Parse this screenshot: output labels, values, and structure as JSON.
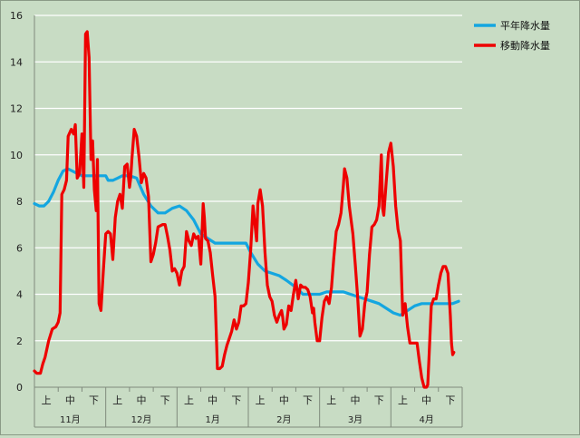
{
  "colors": {
    "background": "#c8dcc4",
    "gridline": "#ffffff",
    "normal_series": "#14a6e0",
    "moving_series": "#ee0000"
  },
  "chart_data": {
    "type": "line",
    "title": "",
    "xlabel": "",
    "ylabel": "",
    "ylim": [
      0,
      16
    ],
    "yticks": [
      0,
      2,
      4,
      6,
      8,
      10,
      12,
      14,
      16
    ],
    "grid": true,
    "legend_position": "top-right",
    "months": [
      "11月",
      "12月",
      "1月",
      "2月",
      "3月",
      "4月"
    ],
    "periods": [
      "上",
      "中",
      "下"
    ],
    "x_range": [
      0,
      18
    ],
    "series": [
      {
        "name": "平年降水量",
        "color": "#14a6e0",
        "points": [
          [
            0,
            7.9
          ],
          [
            0.2,
            7.8
          ],
          [
            0.4,
            7.8
          ],
          [
            0.6,
            8.0
          ],
          [
            0.8,
            8.4
          ],
          [
            1.0,
            8.9
          ],
          [
            1.2,
            9.3
          ],
          [
            1.4,
            9.4
          ],
          [
            1.6,
            9.3
          ],
          [
            1.8,
            9.2
          ],
          [
            2.0,
            9.1
          ],
          [
            2.5,
            9.1
          ],
          [
            3.0,
            9.1
          ],
          [
            3.1,
            8.9
          ],
          [
            3.3,
            8.9
          ],
          [
            3.5,
            9.0
          ],
          [
            3.7,
            9.1
          ],
          [
            4.0,
            9.1
          ],
          [
            4.3,
            9.0
          ],
          [
            4.6,
            8.3
          ],
          [
            4.9,
            7.8
          ],
          [
            5.2,
            7.5
          ],
          [
            5.5,
            7.5
          ],
          [
            5.8,
            7.7
          ],
          [
            6.1,
            7.8
          ],
          [
            6.4,
            7.6
          ],
          [
            6.7,
            7.2
          ],
          [
            7.0,
            6.6
          ],
          [
            7.3,
            6.4
          ],
          [
            7.6,
            6.2
          ],
          [
            8.0,
            6.2
          ],
          [
            8.5,
            6.2
          ],
          [
            8.9,
            6.2
          ],
          [
            9.1,
            5.8
          ],
          [
            9.4,
            5.3
          ],
          [
            9.7,
            5.0
          ],
          [
            10.0,
            4.9
          ],
          [
            10.3,
            4.8
          ],
          [
            10.6,
            4.6
          ],
          [
            11.0,
            4.3
          ],
          [
            11.3,
            4.0
          ],
          [
            11.6,
            4.0
          ],
          [
            12.0,
            4.0
          ],
          [
            12.3,
            4.1
          ],
          [
            12.6,
            4.1
          ],
          [
            13.0,
            4.1
          ],
          [
            13.3,
            4.0
          ],
          [
            13.6,
            3.9
          ],
          [
            13.9,
            3.8
          ],
          [
            14.2,
            3.7
          ],
          [
            14.5,
            3.6
          ],
          [
            14.8,
            3.4
          ],
          [
            15.1,
            3.2
          ],
          [
            15.4,
            3.1
          ],
          [
            15.7,
            3.3
          ],
          [
            16.0,
            3.5
          ],
          [
            16.3,
            3.6
          ],
          [
            16.6,
            3.6
          ],
          [
            17.0,
            3.6
          ],
          [
            17.3,
            3.6
          ],
          [
            17.6,
            3.6
          ],
          [
            17.85,
            3.7
          ]
        ]
      },
      {
        "name": "移動降水量",
        "color": "#ee0000",
        "points": [
          [
            0,
            0.7
          ],
          [
            0.1,
            0.6
          ],
          [
            0.25,
            0.6
          ],
          [
            0.35,
            1.0
          ],
          [
            0.45,
            1.3
          ],
          [
            0.6,
            2.0
          ],
          [
            0.75,
            2.5
          ],
          [
            0.9,
            2.6
          ],
          [
            1.0,
            2.8
          ],
          [
            1.08,
            3.2
          ],
          [
            1.15,
            8.3
          ],
          [
            1.25,
            8.5
          ],
          [
            1.35,
            8.9
          ],
          [
            1.42,
            10.8
          ],
          [
            1.55,
            11.1
          ],
          [
            1.65,
            10.9
          ],
          [
            1.72,
            11.3
          ],
          [
            1.8,
            9.0
          ],
          [
            1.9,
            9.2
          ],
          [
            2.0,
            10.9
          ],
          [
            2.08,
            8.6
          ],
          [
            2.15,
            15.2
          ],
          [
            2.22,
            15.3
          ],
          [
            2.3,
            14.2
          ],
          [
            2.38,
            9.8
          ],
          [
            2.45,
            10.6
          ],
          [
            2.52,
            8.5
          ],
          [
            2.6,
            7.6
          ],
          [
            2.65,
            9.8
          ],
          [
            2.72,
            3.6
          ],
          [
            2.8,
            3.3
          ],
          [
            2.9,
            5.0
          ],
          [
            3.0,
            6.6
          ],
          [
            3.1,
            6.7
          ],
          [
            3.2,
            6.6
          ],
          [
            3.3,
            5.5
          ],
          [
            3.4,
            7.3
          ],
          [
            3.5,
            8.0
          ],
          [
            3.6,
            8.3
          ],
          [
            3.7,
            7.7
          ],
          [
            3.8,
            9.5
          ],
          [
            3.9,
            9.6
          ],
          [
            4.0,
            8.6
          ],
          [
            4.05,
            9.0
          ],
          [
            4.1,
            9.8
          ],
          [
            4.2,
            11.1
          ],
          [
            4.3,
            10.8
          ],
          [
            4.4,
            9.9
          ],
          [
            4.5,
            8.8
          ],
          [
            4.6,
            9.2
          ],
          [
            4.7,
            9.0
          ],
          [
            4.8,
            8.2
          ],
          [
            4.9,
            5.4
          ],
          [
            5.0,
            5.7
          ],
          [
            5.1,
            6.2
          ],
          [
            5.2,
            6.9
          ],
          [
            5.4,
            7.0
          ],
          [
            5.5,
            7.0
          ],
          [
            5.6,
            6.5
          ],
          [
            5.7,
            5.9
          ],
          [
            5.8,
            5.0
          ],
          [
            5.9,
            5.1
          ],
          [
            6.0,
            4.9
          ],
          [
            6.1,
            4.4
          ],
          [
            6.2,
            5.0
          ],
          [
            6.3,
            5.2
          ],
          [
            6.4,
            6.7
          ],
          [
            6.5,
            6.3
          ],
          [
            6.6,
            6.1
          ],
          [
            6.7,
            6.6
          ],
          [
            6.8,
            6.4
          ],
          [
            6.9,
            6.5
          ],
          [
            7.0,
            5.3
          ],
          [
            7.05,
            6.6
          ],
          [
            7.1,
            7.9
          ],
          [
            7.15,
            7.3
          ],
          [
            7.2,
            6.4
          ],
          [
            7.3,
            6.3
          ],
          [
            7.4,
            5.8
          ],
          [
            7.5,
            4.8
          ],
          [
            7.6,
            3.9
          ],
          [
            7.65,
            2.4
          ],
          [
            7.7,
            0.8
          ],
          [
            7.8,
            0.8
          ],
          [
            7.9,
            0.9
          ],
          [
            8.0,
            1.4
          ],
          [
            8.1,
            1.8
          ],
          [
            8.2,
            2.1
          ],
          [
            8.3,
            2.4
          ],
          [
            8.4,
            2.9
          ],
          [
            8.5,
            2.5
          ],
          [
            8.6,
            2.8
          ],
          [
            8.7,
            3.5
          ],
          [
            8.8,
            3.5
          ],
          [
            8.9,
            3.6
          ],
          [
            9.0,
            4.5
          ],
          [
            9.1,
            5.9
          ],
          [
            9.2,
            7.8
          ],
          [
            9.3,
            6.8
          ],
          [
            9.35,
            6.3
          ],
          [
            9.4,
            7.9
          ],
          [
            9.5,
            8.5
          ],
          [
            9.6,
            7.8
          ],
          [
            9.7,
            5.8
          ],
          [
            9.8,
            4.4
          ],
          [
            9.9,
            3.9
          ],
          [
            10.0,
            3.7
          ],
          [
            10.1,
            3.1
          ],
          [
            10.2,
            2.8
          ],
          [
            10.3,
            3.1
          ],
          [
            10.4,
            3.3
          ],
          [
            10.45,
            3.0
          ],
          [
            10.5,
            2.5
          ],
          [
            10.6,
            2.7
          ],
          [
            10.7,
            3.5
          ],
          [
            10.8,
            3.3
          ],
          [
            10.9,
            4.0
          ],
          [
            11.0,
            4.6
          ],
          [
            11.1,
            3.8
          ],
          [
            11.2,
            4.4
          ],
          [
            11.3,
            4.3
          ],
          [
            11.4,
            4.3
          ],
          [
            11.5,
            4.2
          ],
          [
            11.6,
            3.9
          ],
          [
            11.7,
            3.2
          ],
          [
            11.75,
            3.4
          ],
          [
            11.8,
            2.8
          ],
          [
            11.9,
            2.0
          ],
          [
            12.0,
            2.0
          ],
          [
            12.1,
            3.0
          ],
          [
            12.2,
            3.7
          ],
          [
            12.3,
            3.9
          ],
          [
            12.4,
            3.6
          ],
          [
            12.5,
            4.3
          ],
          [
            12.6,
            5.6
          ],
          [
            12.7,
            6.7
          ],
          [
            12.8,
            7.0
          ],
          [
            12.9,
            7.5
          ],
          [
            13.0,
            8.7
          ],
          [
            13.05,
            9.4
          ],
          [
            13.15,
            9.0
          ],
          [
            13.25,
            7.8
          ],
          [
            13.4,
            6.6
          ],
          [
            13.5,
            5.3
          ],
          [
            13.6,
            3.9
          ],
          [
            13.7,
            2.2
          ],
          [
            13.8,
            2.5
          ],
          [
            13.9,
            3.6
          ],
          [
            14.0,
            4.1
          ],
          [
            14.1,
            5.7
          ],
          [
            14.2,
            6.9
          ],
          [
            14.3,
            7.0
          ],
          [
            14.4,
            7.2
          ],
          [
            14.5,
            7.8
          ],
          [
            14.6,
            10.0
          ],
          [
            14.65,
            7.7
          ],
          [
            14.7,
            7.4
          ],
          [
            14.8,
            8.8
          ],
          [
            14.9,
            10.1
          ],
          [
            15.0,
            10.5
          ],
          [
            15.1,
            9.5
          ],
          [
            15.2,
            7.8
          ],
          [
            15.3,
            6.8
          ],
          [
            15.4,
            6.3
          ],
          [
            15.5,
            3.1
          ],
          [
            15.6,
            3.6
          ],
          [
            15.7,
            2.6
          ],
          [
            15.8,
            1.9
          ],
          [
            15.9,
            1.9
          ],
          [
            16.0,
            1.9
          ],
          [
            16.1,
            1.9
          ],
          [
            16.2,
            1.1
          ],
          [
            16.3,
            0.4
          ],
          [
            16.4,
            0.0
          ],
          [
            16.5,
            0.0
          ],
          [
            16.55,
            0.1
          ],
          [
            16.6,
            1.2
          ],
          [
            16.7,
            3.5
          ],
          [
            16.8,
            3.8
          ],
          [
            16.9,
            3.8
          ],
          [
            17.0,
            4.4
          ],
          [
            17.1,
            4.9
          ],
          [
            17.2,
            5.2
          ],
          [
            17.3,
            5.2
          ],
          [
            17.4,
            4.9
          ],
          [
            17.5,
            3.1
          ],
          [
            17.55,
            1.9
          ],
          [
            17.6,
            1.4
          ],
          [
            17.65,
            1.5
          ]
        ]
      }
    ]
  }
}
